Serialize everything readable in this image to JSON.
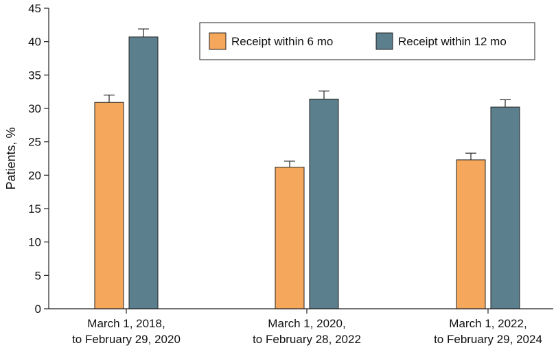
{
  "chart_data": {
    "type": "bar",
    "title": "",
    "xlabel": "",
    "ylabel": "Patients, %",
    "ylim": [
      0,
      45
    ],
    "yticks": [
      0,
      5,
      10,
      15,
      20,
      25,
      30,
      35,
      40,
      45
    ],
    "categories": [
      [
        "March 1, 2018,",
        "to February 29, 2020"
      ],
      [
        "March 1, 2020,",
        "to February 28, 2022"
      ],
      [
        "March 1, 2022,",
        "to February 29, 2024"
      ]
    ],
    "series": [
      {
        "name": "Receipt within 6 mo",
        "color": "#F5A85C",
        "values": [
          30.9,
          21.2,
          22.3
        ],
        "error_upper": [
          32.0,
          22.1,
          23.3
        ]
      },
      {
        "name": "Receipt within 12 mo",
        "color": "#5B7F8C",
        "values": [
          40.7,
          31.4,
          30.2
        ],
        "error_upper": [
          41.9,
          32.6,
          31.3
        ]
      }
    ],
    "legend_position": "top-right",
    "grid": false
  }
}
